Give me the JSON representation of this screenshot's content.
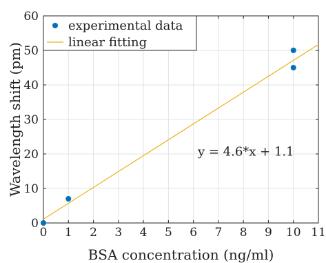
{
  "chart_data": {
    "type": "scatter",
    "title": "",
    "xlabel": "BSA concentration (ng/ml)",
    "ylabel": "Wavelength shift (pm)",
    "xlim": [
      0,
      11
    ],
    "ylim": [
      0,
      60
    ],
    "xticks": [
      0,
      1,
      2,
      3,
      4,
      5,
      6,
      7,
      8,
      9,
      10,
      11
    ],
    "yticks": [
      0,
      10,
      20,
      30,
      40,
      50,
      60
    ],
    "grid": true,
    "legend_position": "top-left",
    "series": [
      {
        "name": "experimental data",
        "kind": "scatter",
        "color": "#0072BD",
        "points": [
          {
            "x": 0,
            "y": 0
          },
          {
            "x": 1,
            "y": 7
          },
          {
            "x": 10,
            "y": 50
          },
          {
            "x": 10,
            "y": 45
          }
        ]
      },
      {
        "name": "linear fitting",
        "kind": "line",
        "color": "#EDB120",
        "slope": 4.6,
        "intercept": 1.1
      }
    ],
    "annotations": [
      {
        "text": "y = 4.6*x + 1.1",
        "x": 8.1,
        "y": 19.5
      }
    ]
  }
}
